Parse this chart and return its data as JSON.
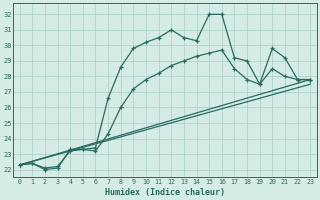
{
  "title": "",
  "xlabel": "Humidex (Indice chaleur)",
  "xlim": [
    -0.5,
    23.5
  ],
  "ylim": [
    21.5,
    32.7
  ],
  "xticks": [
    0,
    1,
    2,
    3,
    4,
    5,
    6,
    7,
    8,
    9,
    10,
    11,
    12,
    13,
    14,
    15,
    16,
    17,
    18,
    19,
    20,
    21,
    22,
    23
  ],
  "yticks": [
    22,
    23,
    24,
    25,
    26,
    27,
    28,
    29,
    30,
    31,
    32
  ],
  "background_color": "#d4ebe6",
  "grid_color": "#a8cec8",
  "line_color": "#2a6b60",
  "line1_x": [
    0,
    1,
    2,
    3,
    4,
    5,
    6,
    7,
    8,
    9,
    10,
    11,
    12,
    13,
    14,
    15,
    16,
    17,
    18,
    19,
    20,
    21,
    22,
    23
  ],
  "line1_y": [
    22.3,
    22.4,
    22.0,
    22.1,
    23.3,
    23.3,
    23.4,
    26.6,
    28.6,
    29.8,
    30.2,
    30.5,
    31.0,
    30.5,
    30.3,
    32.0,
    32.0,
    29.2,
    29.0,
    27.5,
    29.8,
    29.2,
    27.8,
    27.8
  ],
  "line2_x": [
    0,
    1,
    2,
    3,
    4,
    5,
    6,
    7,
    8,
    9,
    10,
    11,
    12,
    13,
    14,
    15,
    16,
    17,
    18,
    19,
    20,
    21,
    22,
    23
  ],
  "line2_y": [
    22.3,
    22.4,
    22.1,
    22.2,
    23.2,
    23.3,
    23.2,
    24.3,
    26.0,
    27.2,
    27.8,
    28.2,
    28.7,
    29.0,
    29.3,
    29.5,
    29.7,
    28.5,
    27.8,
    27.5,
    28.5,
    28.0,
    27.8,
    27.8
  ],
  "line3_x": [
    0,
    23
  ],
  "line3_y": [
    22.3,
    27.8
  ],
  "line4_x": [
    0,
    23
  ],
  "line4_y": [
    22.3,
    27.5
  ]
}
